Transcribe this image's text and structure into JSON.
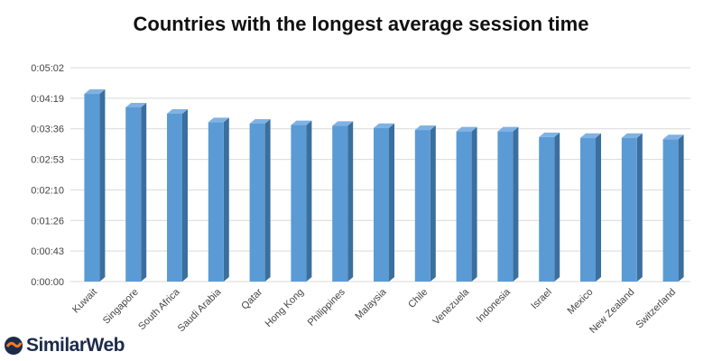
{
  "brand": {
    "logo_text": "SimilarWeb",
    "colors": {
      "text": "#1c2b4a",
      "accent": "#f47b20"
    }
  },
  "chart_data": {
    "type": "bar",
    "title": "Countries with the longest average session time",
    "xlabel": "",
    "ylabel": "",
    "categories": [
      "Kuwait",
      "Singapore",
      "South Africa",
      "Saudi Arabia",
      "Qatar",
      "Hong Kong",
      "Philippines",
      "Malaysia",
      "Chile",
      "Venezuela",
      "Indonesia",
      "Israel",
      "Mexico",
      "New Zealand",
      "Switzerland"
    ],
    "values_seconds": [
      265,
      246,
      237,
      225,
      223,
      221,
      220,
      217,
      214,
      212,
      212,
      204,
      203,
      203,
      201
    ],
    "y_ticks": [
      "0:00:00",
      "0:00:43",
      "0:01:26",
      "0:02:10",
      "0:02:53",
      "0:03:36",
      "0:04:19",
      "0:05:02"
    ],
    "ylim_seconds": [
      0,
      302
    ],
    "grid": true,
    "bar_style": "3d",
    "colors": {
      "bar_front": "#5b9bd5",
      "bar_side": "#3a6f9e",
      "bar_top": "#7fb2e3",
      "grid": "#d9d9d9"
    }
  }
}
